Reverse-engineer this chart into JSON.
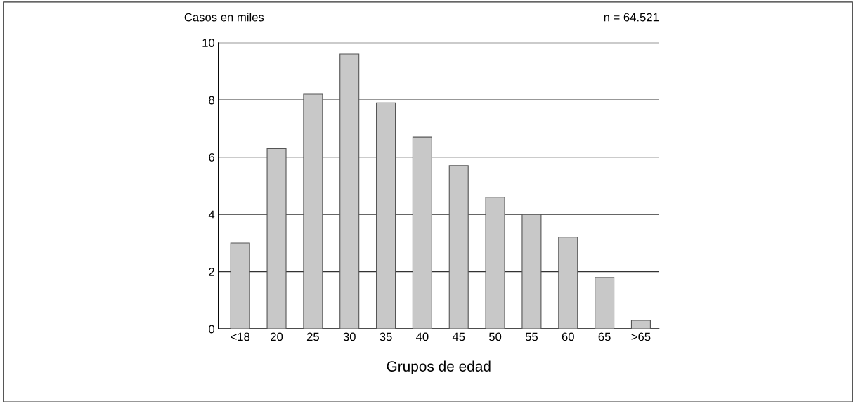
{
  "chart_data": {
    "type": "bar",
    "ylabel": "Casos en miles",
    "xlabel": "Grupos de edad",
    "annotations": [
      "n = 64.521"
    ],
    "categories": [
      "<18",
      "20",
      "25",
      "30",
      "35",
      "40",
      "45",
      "50",
      "55",
      "60",
      "65",
      ">65"
    ],
    "values": [
      3.0,
      6.3,
      8.2,
      9.6,
      7.9,
      6.7,
      5.7,
      4.6,
      4.0,
      3.2,
      1.8,
      0.3
    ],
    "color": "#c8c8c8",
    "ylim": [
      0,
      10
    ],
    "yticks": [
      0,
      2,
      4,
      6,
      8,
      10
    ],
    "grid": "y"
  }
}
